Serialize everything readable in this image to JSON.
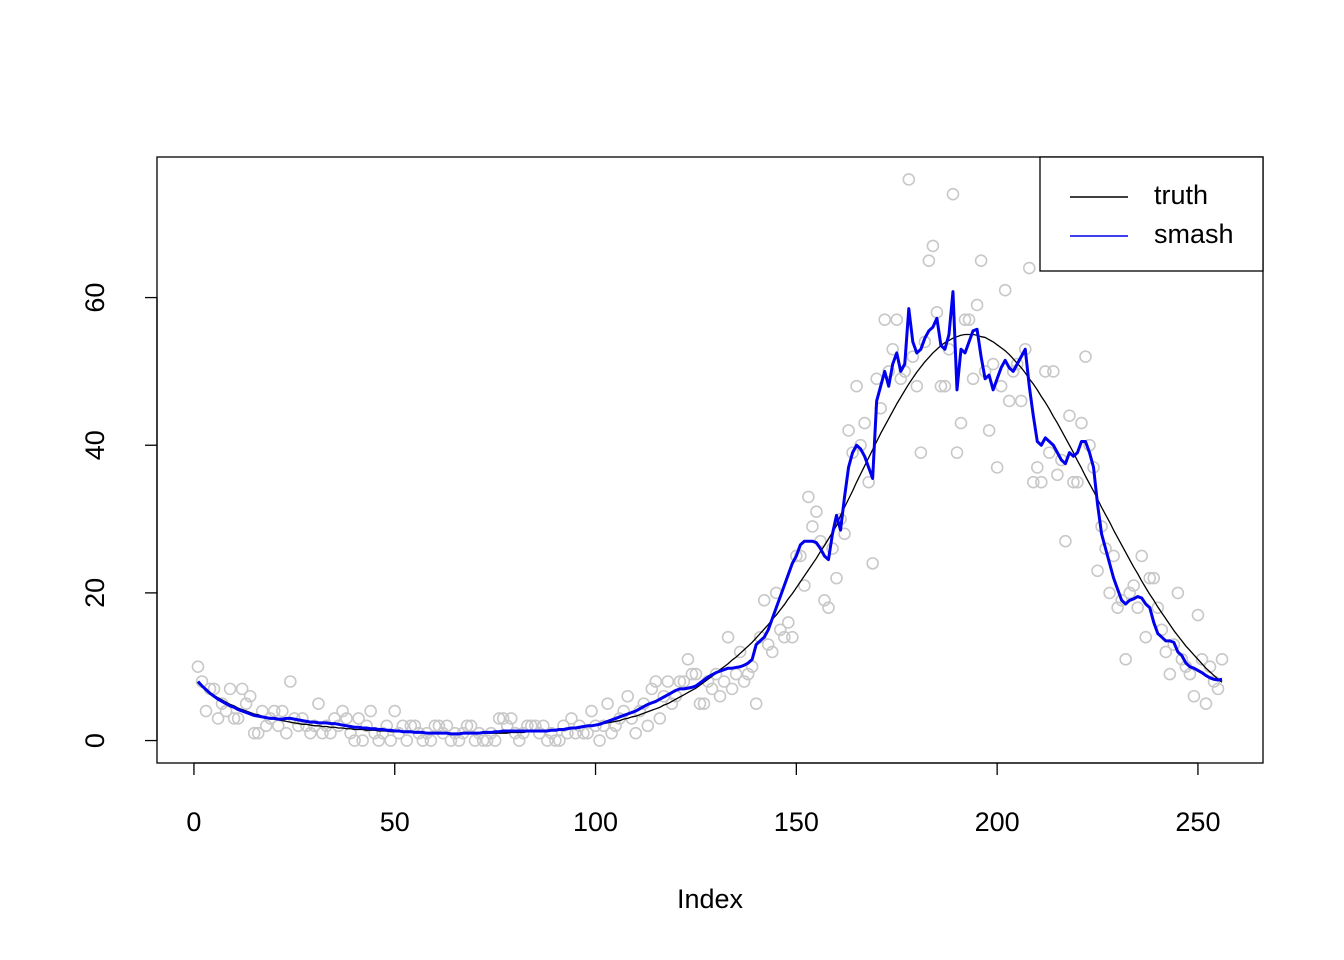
{
  "chart_data": {
    "type": "scatter",
    "xlabel": "Index",
    "xlim": [
      -9.2,
      266.2
    ],
    "ylim": [
      -3.04,
      79.04
    ],
    "xticks": [
      0,
      50,
      100,
      150,
      200,
      250
    ],
    "yticks": [
      0,
      20,
      40,
      60
    ],
    "legend": "topright",
    "x": [
      1,
      2,
      3,
      4,
      5,
      6,
      7,
      8,
      9,
      10,
      11,
      12,
      13,
      14,
      15,
      16,
      17,
      18,
      19,
      20,
      21,
      22,
      23,
      24,
      25,
      26,
      27,
      28,
      29,
      30,
      31,
      32,
      33,
      34,
      35,
      36,
      37,
      38,
      39,
      40,
      41,
      42,
      43,
      44,
      45,
      46,
      47,
      48,
      49,
      50,
      51,
      52,
      53,
      54,
      55,
      56,
      57,
      58,
      59,
      60,
      61,
      62,
      63,
      64,
      65,
      66,
      67,
      68,
      69,
      70,
      71,
      72,
      73,
      74,
      75,
      76,
      77,
      78,
      79,
      80,
      81,
      82,
      83,
      84,
      85,
      86,
      87,
      88,
      89,
      90,
      91,
      92,
      93,
      94,
      95,
      96,
      97,
      98,
      99,
      100,
      101,
      102,
      103,
      104,
      105,
      106,
      107,
      108,
      109,
      110,
      111,
      112,
      113,
      114,
      115,
      116,
      117,
      118,
      119,
      120,
      121,
      122,
      123,
      124,
      125,
      126,
      127,
      128,
      129,
      130,
      131,
      132,
      133,
      134,
      135,
      136,
      137,
      138,
      139,
      140,
      141,
      142,
      143,
      144,
      145,
      146,
      147,
      148,
      149,
      150,
      151,
      152,
      153,
      154,
      155,
      156,
      157,
      158,
      159,
      160,
      161,
      162,
      163,
      164,
      165,
      166,
      167,
      168,
      169,
      170,
      171,
      172,
      173,
      174,
      175,
      176,
      177,
      178,
      179,
      180,
      181,
      182,
      183,
      184,
      185,
      186,
      187,
      188,
      189,
      190,
      191,
      192,
      193,
      194,
      195,
      196,
      197,
      198,
      199,
      200,
      201,
      202,
      203,
      204,
      205,
      206,
      207,
      208,
      209,
      210,
      211,
      212,
      213,
      214,
      215,
      216,
      217,
      218,
      219,
      220,
      221,
      222,
      223,
      224,
      225,
      226,
      227,
      228,
      229,
      230,
      231,
      232,
      233,
      234,
      235,
      236,
      237,
      238,
      239,
      240,
      241,
      242,
      243,
      244,
      245,
      246,
      247,
      248,
      249,
      250,
      251,
      252,
      253,
      254,
      255,
      256
    ],
    "points": {
      "color": "#c8c8c8",
      "values": [
        10,
        8,
        4,
        7,
        7,
        3,
        5,
        4,
        7,
        3,
        3,
        7,
        5,
        6,
        1,
        1,
        4,
        2,
        3,
        4,
        2,
        4,
        1,
        8,
        3,
        2,
        3,
        2,
        1,
        2,
        5,
        1,
        2,
        1,
        3,
        2,
        4,
        3,
        1,
        0,
        3,
        0,
        2,
        4,
        1,
        0,
        1,
        2,
        0,
        4,
        1,
        2,
        0,
        2,
        2,
        1,
        0,
        1,
        0,
        2,
        2,
        1,
        2,
        0,
        1,
        0,
        1,
        2,
        2,
        0,
        1,
        0,
        0,
        1,
        0,
        3,
        3,
        2,
        3,
        1,
        0,
        1,
        2,
        2,
        2,
        1,
        2,
        0,
        1,
        0,
        0,
        2,
        1,
        3,
        1,
        2,
        1,
        1,
        4,
        2,
        0,
        2,
        5,
        1,
        2,
        3,
        4,
        6,
        3,
        1,
        4,
        5,
        2,
        7,
        8,
        3,
        6,
        8,
        5,
        6,
        8,
        8,
        11,
        9,
        9,
        5,
        5,
        8,
        7,
        9,
        6,
        8,
        14,
        7,
        9,
        12,
        8,
        9,
        10,
        5,
        14,
        19,
        13,
        12,
        20,
        15,
        14,
        16,
        14,
        25,
        25,
        21,
        33,
        29,
        31,
        27,
        19,
        18,
        26,
        22,
        30,
        28,
        42,
        39,
        48,
        40,
        43,
        35,
        24,
        49,
        45,
        57,
        50,
        53,
        57,
        49,
        50,
        76,
        52,
        48,
        39,
        54,
        65,
        67,
        58,
        48,
        48,
        53,
        74,
        39,
        43,
        57,
        57,
        49,
        59,
        65,
        50,
        42,
        51,
        37,
        48,
        61,
        46,
        50,
        51,
        46,
        53,
        64,
        35,
        37,
        35,
        50,
        39,
        50,
        36,
        38,
        27,
        44,
        35,
        35,
        43,
        52,
        40,
        37,
        23,
        29,
        26,
        20,
        25,
        18,
        19,
        11,
        20,
        21,
        18,
        25,
        14,
        22,
        22,
        18,
        15,
        12,
        9,
        13,
        20,
        11,
        10,
        9,
        6,
        17,
        11,
        5,
        10,
        8,
        7,
        11
      ]
    },
    "series": [
      {
        "name": "truth",
        "color": "#000000",
        "values": [
          7.8,
          7.3,
          6.9,
          6.5,
          6.1,
          5.8,
          5.5,
          5.2,
          4.9,
          4.7,
          4.4,
          4.2,
          4.0,
          3.8,
          3.6,
          3.5,
          3.3,
          3.2,
          3.0,
          2.9,
          2.8,
          2.7,
          2.6,
          2.5,
          2.4,
          2.3,
          2.2,
          2.2,
          2.1,
          2.0,
          2.0,
          1.9,
          1.9,
          1.8,
          1.8,
          1.7,
          1.7,
          1.6,
          1.6,
          1.5,
          1.5,
          1.5,
          1.4,
          1.4,
          1.4,
          1.3,
          1.3,
          1.3,
          1.2,
          1.2,
          1.2,
          1.2,
          1.1,
          1.1,
          1.1,
          1.1,
          1.0,
          1.0,
          1.0,
          1.0,
          1.0,
          1.0,
          0.9,
          0.9,
          0.9,
          0.9,
          0.9,
          0.9,
          0.9,
          0.9,
          0.9,
          1.0,
          1.0,
          1.0,
          1.0,
          1.0,
          1.0,
          1.0,
          1.1,
          1.1,
          1.1,
          1.1,
          1.2,
          1.2,
          1.2,
          1.3,
          1.3,
          1.3,
          1.4,
          1.4,
          1.5,
          1.5,
          1.6,
          1.6,
          1.7,
          1.8,
          1.8,
          1.9,
          2.0,
          2.1,
          2.2,
          2.3,
          2.4,
          2.5,
          2.6,
          2.7,
          2.9,
          3.0,
          3.2,
          3.3,
          3.5,
          3.7,
          3.9,
          4.1,
          4.3,
          4.5,
          4.8,
          5.0,
          5.3,
          5.6,
          5.9,
          6.2,
          6.5,
          6.8,
          7.1,
          7.5,
          7.9,
          8.3,
          8.7,
          9.1,
          9.6,
          10.0,
          10.4,
          10.9,
          11.3,
          11.8,
          12.3,
          12.8,
          13.3,
          13.9,
          14.5,
          15.1,
          15.7,
          16.4,
          17.0,
          17.7,
          18.4,
          19.2,
          19.9,
          20.7,
          21.5,
          22.3,
          23.1,
          23.9,
          24.7,
          25.6,
          26.4,
          27.3,
          28.2,
          29.1,
          30.5,
          31.6,
          32.7,
          33.8,
          35.0,
          36.1,
          37.2,
          38.3,
          39.4,
          40.5,
          41.6,
          42.6,
          43.6,
          44.6,
          45.6,
          46.5,
          47.4,
          48.3,
          49.1,
          49.9,
          50.6,
          51.3,
          51.9,
          52.5,
          53.0,
          53.5,
          53.9,
          54.2,
          54.5,
          54.7,
          54.9,
          55.0,
          55.0,
          55.0,
          54.9,
          54.7,
          54.6,
          54.3,
          54.0,
          53.6,
          53.2,
          52.8,
          52.3,
          51.7,
          51.1,
          50.5,
          49.8,
          49.0,
          48.3,
          47.5,
          46.6,
          45.8,
          44.9,
          43.9,
          43.0,
          42.0,
          41.0,
          40.0,
          39.0,
          37.9,
          36.9,
          35.8,
          34.8,
          33.8,
          32.7,
          31.6,
          30.6,
          29.6,
          28.5,
          27.5,
          26.5,
          25.5,
          24.5,
          23.5,
          22.6,
          21.6,
          20.7,
          19.8,
          19.0,
          18.1,
          17.3,
          16.5,
          15.7,
          14.9,
          14.2,
          13.5,
          12.8,
          12.2,
          11.6,
          11.0,
          10.4,
          9.8,
          9.3,
          8.8,
          8.3,
          7.9
        ]
      },
      {
        "name": "smash",
        "color": "#0000ee",
        "values": [
          8.0,
          7.4,
          6.9,
          6.4,
          6.0,
          5.6,
          5.3,
          5.0,
          4.7,
          4.5,
          4.2,
          4.0,
          3.8,
          3.6,
          3.4,
          3.3,
          3.2,
          3.1,
          3.0,
          3.0,
          2.9,
          2.9,
          3.0,
          3.0,
          2.9,
          2.8,
          2.7,
          2.6,
          2.5,
          2.5,
          2.4,
          2.4,
          2.4,
          2.3,
          2.3,
          2.2,
          2.1,
          2.0,
          1.9,
          1.8,
          1.8,
          1.7,
          1.7,
          1.6,
          1.6,
          1.5,
          1.5,
          1.4,
          1.4,
          1.3,
          1.3,
          1.2,
          1.2,
          1.2,
          1.1,
          1.1,
          1.1,
          1.0,
          1.0,
          1.0,
          1.0,
          1.0,
          1.0,
          0.9,
          0.9,
          0.9,
          1.0,
          1.0,
          1.0,
          1.0,
          1.0,
          1.1,
          1.1,
          1.1,
          1.2,
          1.2,
          1.3,
          1.3,
          1.3,
          1.3,
          1.3,
          1.3,
          1.3,
          1.3,
          1.3,
          1.3,
          1.3,
          1.3,
          1.4,
          1.4,
          1.5,
          1.5,
          1.6,
          1.7,
          1.7,
          1.8,
          1.9,
          2.0,
          2.0,
          2.1,
          2.2,
          2.4,
          2.6,
          2.8,
          3.0,
          3.2,
          3.4,
          3.6,
          3.8,
          4.0,
          4.3,
          4.6,
          4.9,
          5.1,
          5.3,
          5.6,
          5.9,
          6.2,
          6.5,
          6.8,
          7.0,
          7.0,
          7.1,
          7.2,
          7.4,
          7.8,
          8.2,
          8.6,
          8.9,
          9.2,
          9.4,
          9.6,
          9.8,
          9.8,
          9.9,
          10.0,
          10.2,
          10.5,
          11.0,
          13.0,
          13.5,
          14.0,
          15.0,
          16.5,
          18.0,
          19.5,
          21.0,
          22.5,
          24.0,
          25.0,
          26.5,
          27.0,
          27.0,
          27.0,
          26.8,
          26.0,
          25.0,
          24.5,
          28.0,
          30.5,
          28.5,
          33.0,
          37.0,
          39.0,
          40.0,
          39.5,
          38.5,
          37.0,
          35.5,
          46.0,
          48.0,
          50.0,
          48.0,
          51.0,
          52.5,
          50.0,
          51.0,
          58.5,
          54.0,
          52.5,
          53.0,
          54.5,
          55.5,
          56.0,
          57.2,
          53.5,
          53.0,
          55.0,
          60.8,
          47.5,
          53.0,
          52.5,
          54.0,
          55.5,
          55.7,
          52.0,
          49.0,
          49.5,
          47.5,
          49.0,
          50.5,
          51.5,
          50.5,
          50.0,
          51.0,
          52.0,
          53.0,
          48.0,
          44.0,
          40.5,
          40.0,
          41.0,
          40.5,
          40.0,
          39.0,
          38.0,
          37.5,
          39.0,
          38.5,
          39.0,
          40.5,
          40.5,
          39.0,
          37.0,
          32.0,
          28.0,
          26.0,
          24.0,
          22.0,
          20.5,
          19.0,
          18.5,
          19.0,
          19.2,
          19.5,
          19.3,
          18.5,
          18.0,
          16.0,
          14.5,
          14.0,
          13.5,
          13.5,
          13.3,
          12.0,
          11.5,
          10.5,
          10.0,
          9.8,
          9.5,
          9.2,
          8.8,
          8.5,
          8.3,
          8.2,
          8.3
        ]
      }
    ]
  }
}
